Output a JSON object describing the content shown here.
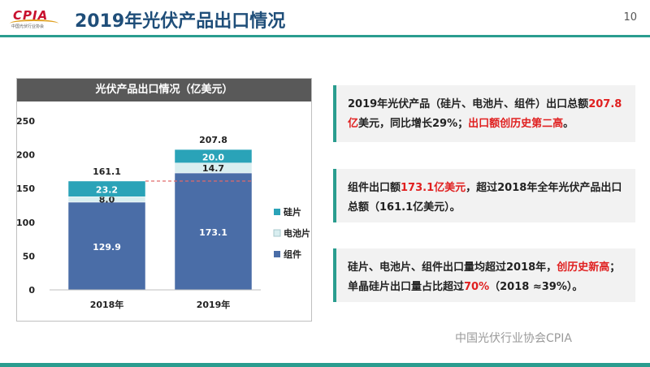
{
  "header": {
    "logo_text": "CPIA",
    "logo_sub": "中国光伏行业协会",
    "title": "2019年光伏产品出口情况",
    "page_number": "10"
  },
  "colors": {
    "module": "#4a6da7",
    "cell": "#d9eef0",
    "wafer": "#2aa3b8",
    "accent": "#2a9d8f"
  },
  "chart_data": {
    "type": "bar",
    "stacked": true,
    "title": "光伏产品出口情况（亿美元）",
    "categories": [
      "2018年",
      "2019年"
    ],
    "series": [
      {
        "name": "组件",
        "values": [
          129.9,
          173.1
        ]
      },
      {
        "name": "电池片",
        "values": [
          8.0,
          14.7
        ]
      },
      {
        "name": "硅片",
        "values": [
          23.2,
          20.0
        ]
      }
    ],
    "totals": [
      "161.1",
      "207.8"
    ],
    "yticks": [
      "0",
      "50",
      "100",
      "150",
      "200",
      "250"
    ],
    "ylim": [
      0,
      250
    ],
    "reference_line": 161.1,
    "legend_position": "right"
  },
  "cards": [
    {
      "parts": [
        {
          "t": "2019年光伏产品（硅片、电池片、组件）出口总额",
          "red": false
        },
        {
          "t": "207.8亿",
          "red": true
        },
        {
          "t": "美元，同比增长29%；",
          "red": false
        },
        {
          "t": "出口额创历史第二高",
          "red": true
        },
        {
          "t": "。",
          "red": false
        }
      ]
    },
    {
      "parts": [
        {
          "t": "组件出口额",
          "red": false
        },
        {
          "t": "173.1亿美元",
          "red": true
        },
        {
          "t": "，超过2018年全年光伏产品出口总额（161.1亿美元）。",
          "red": false
        }
      ]
    },
    {
      "parts": [
        {
          "t": "硅片、电池片、组件出口量均超过2018年，",
          "red": false
        },
        {
          "t": "创历史新高",
          "red": true
        },
        {
          "t": "；单晶硅片出口量占比超过",
          "red": false
        },
        {
          "t": "70%",
          "red": true
        },
        {
          "t": "（2018 ≈39%）。",
          "red": false
        }
      ]
    }
  ],
  "watermark": "中国光伏行业协会CPIA"
}
